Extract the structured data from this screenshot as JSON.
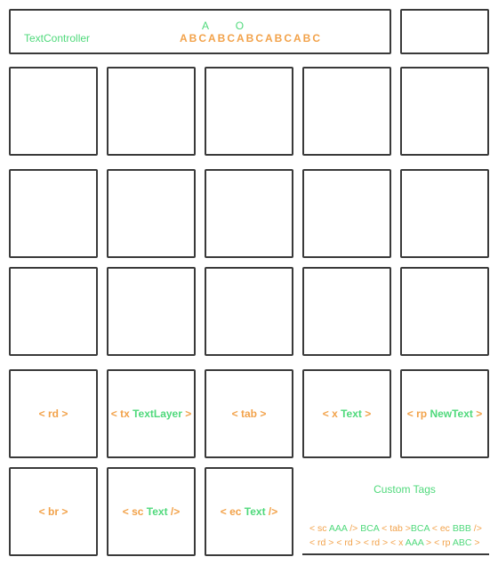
{
  "header": {
    "label": "TextController",
    "top_letters": [
      "A",
      "O"
    ],
    "abc_text": "ABCABCABCABCABC"
  },
  "cells": {
    "rd": {
      "open": "< rd >"
    },
    "tx": {
      "open": "< tx",
      "text": "TextLayer",
      "close": " >"
    },
    "tab": {
      "open": "< tab >"
    },
    "x": {
      "open": "< x",
      "text": "Text",
      "close": " >"
    },
    "rp": {
      "open": "< rp",
      "text": "NewText",
      "close": " >"
    },
    "br": {
      "open": "< br >"
    },
    "sc": {
      "open": "< sc",
      "text": "Text",
      "close": " />"
    },
    "ec": {
      "open": "< ec",
      "text": "Text",
      "close": " />"
    }
  },
  "custom_tags": {
    "title": "Custom Tags",
    "line1": [
      {
        "t": "< sc ",
        "c": "o"
      },
      {
        "t": "AAA",
        "c": "g"
      },
      {
        "t": " /> ",
        "c": "o"
      },
      {
        "t": "BCA",
        "c": "g"
      },
      {
        "t": " < tab >",
        "c": "o"
      },
      {
        "t": "BCA",
        "c": "g"
      },
      {
        "t": " < ec ",
        "c": "o"
      },
      {
        "t": "BBB",
        "c": "g"
      },
      {
        "t": " />",
        "c": "o"
      }
    ],
    "line2": [
      {
        "t": "< rd > < rd > < rd > < x ",
        "c": "o"
      },
      {
        "t": "AAA",
        "c": "g"
      },
      {
        "t": " > < rp ",
        "c": "o"
      },
      {
        "t": "ABC",
        "c": "g"
      },
      {
        "t": " >",
        "c": "o"
      }
    ]
  }
}
